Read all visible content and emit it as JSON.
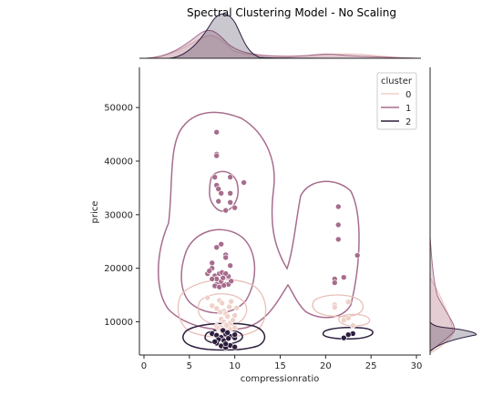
{
  "chart_data": {
    "type": "scatter",
    "title": "Spectral Clustering Model - No Scaling",
    "xlabel": "compressionratio",
    "ylabel": "price",
    "xlim": [
      -0.5,
      30.5
    ],
    "ylim": [
      3800,
      57500
    ],
    "x_ticks": [
      0,
      5,
      10,
      15,
      20,
      25,
      30
    ],
    "y_ticks": [
      10000,
      20000,
      30000,
      40000,
      50000
    ],
    "grid": false,
    "legend": {
      "title": "cluster",
      "placement": "top-right"
    },
    "series": [
      {
        "name": "0",
        "color": "#efd1c9",
        "points": [
          [
            7,
            14500
          ],
          [
            7.5,
            13000
          ],
          [
            8,
            12500
          ],
          [
            8.3,
            14000
          ],
          [
            8.6,
            13500
          ],
          [
            8.8,
            12000
          ],
          [
            9,
            11500
          ],
          [
            9.2,
            11000
          ],
          [
            9.4,
            12800
          ],
          [
            9.6,
            13800
          ],
          [
            8.5,
            10500
          ],
          [
            8.8,
            10000
          ],
          [
            9,
            9500
          ],
          [
            9.3,
            9000
          ],
          [
            9.5,
            9800
          ],
          [
            8,
            9200
          ],
          [
            8.2,
            8800
          ],
          [
            8.5,
            8500
          ],
          [
            9,
            8300
          ],
          [
            9.5,
            8600
          ],
          [
            10,
            8900
          ],
          [
            10,
            11200
          ],
          [
            10.2,
            12600
          ],
          [
            8.7,
            7800
          ],
          [
            9.1,
            9300
          ],
          [
            8.4,
            11800
          ],
          [
            9.8,
            10300
          ],
          [
            21,
            13200
          ],
          [
            21,
            12700
          ],
          [
            22,
            10300
          ],
          [
            22.5,
            10700
          ],
          [
            22.5,
            13700
          ],
          [
            23,
            9300
          ]
        ]
      },
      {
        "name": "1",
        "color": "#a76d8d",
        "points": [
          [
            8,
            45400
          ],
          [
            8,
            41300
          ],
          [
            8,
            41000
          ],
          [
            7.8,
            37000
          ],
          [
            9.5,
            37000
          ],
          [
            8,
            35500
          ],
          [
            8.2,
            34800
          ],
          [
            8.5,
            34000
          ],
          [
            9.5,
            34000
          ],
          [
            11,
            36000
          ],
          [
            8.2,
            32500
          ],
          [
            9.5,
            32300
          ],
          [
            10,
            31300
          ],
          [
            9,
            30800
          ],
          [
            8.5,
            24500
          ],
          [
            9,
            22500
          ],
          [
            9,
            22000
          ],
          [
            8,
            23900
          ],
          [
            7.5,
            21000
          ],
          [
            7,
            19000
          ],
          [
            7.5,
            20000
          ],
          [
            7.8,
            18600
          ],
          [
            8.3,
            19000
          ],
          [
            8.6,
            19200
          ],
          [
            8,
            18000
          ],
          [
            7.5,
            18000
          ],
          [
            8.5,
            17500
          ],
          [
            9,
            17000
          ],
          [
            8,
            17000
          ],
          [
            7.8,
            16700
          ],
          [
            8.3,
            16500
          ],
          [
            9.3,
            17000
          ],
          [
            9.6,
            17600
          ],
          [
            9.3,
            18500
          ],
          [
            8.8,
            16800
          ],
          [
            9,
            19000
          ],
          [
            9.5,
            20500
          ],
          [
            7.2,
            19500
          ],
          [
            8.7,
            18200
          ],
          [
            21.4,
            31500
          ],
          [
            21.4,
            28100
          ],
          [
            21.4,
            25400
          ],
          [
            23.5,
            22400
          ],
          [
            21,
            18000
          ],
          [
            22,
            18300
          ],
          [
            21,
            17300
          ]
        ]
      },
      {
        "name": "2",
        "color": "#2d1e3e",
        "points": [
          [
            7.5,
            7800
          ],
          [
            8,
            7500
          ],
          [
            8.5,
            7100
          ],
          [
            9,
            7700
          ],
          [
            9.5,
            7300
          ],
          [
            8.2,
            6700
          ],
          [
            8.8,
            6500
          ],
          [
            9.3,
            6900
          ],
          [
            10,
            7000
          ],
          [
            8,
            6000
          ],
          [
            8.5,
            5500
          ],
          [
            9,
            5200
          ],
          [
            9.5,
            5600
          ],
          [
            10,
            5300
          ],
          [
            8.7,
            8400
          ],
          [
            9.2,
            8000
          ],
          [
            7.8,
            6300
          ],
          [
            10,
            7600
          ],
          [
            9,
            5900
          ],
          [
            22,
            7000
          ],
          [
            23,
            7800
          ],
          [
            22.5,
            7600
          ]
        ]
      }
    ]
  }
}
